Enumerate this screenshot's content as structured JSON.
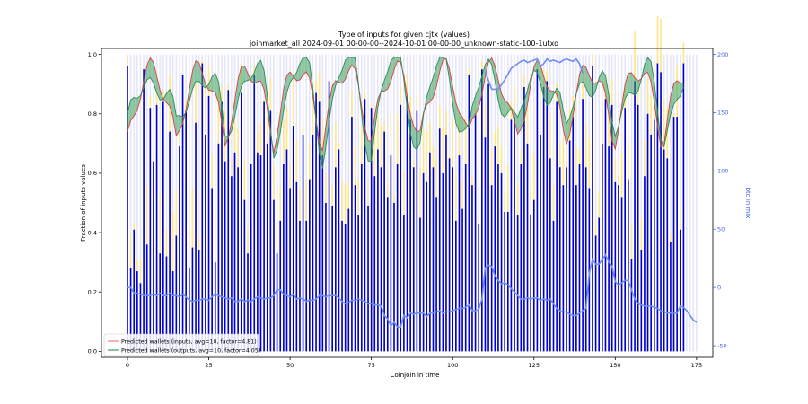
{
  "chart_data": {
    "type": "bar",
    "title": "Type of inputs for given cjtx (values)",
    "subtitle": "joinmarket_all 2024-09-01 00-00-00--2024-10-01 00-00-00_unknown-static-100-1utxo",
    "xlabel": "Coinjoin in time",
    "ylabel": "Fraction of inputs values",
    "y2label": "btc in mix",
    "xlim": [
      -8,
      180
    ],
    "ylim": [
      -0.02,
      1.02
    ],
    "y2lim": [
      -60,
      205
    ],
    "xticks": [
      "0",
      "25",
      "50",
      "75",
      "100",
      "125",
      "150",
      "175"
    ],
    "yticks": [
      "0.0",
      "0.2",
      "0.4",
      "0.6",
      "0.8",
      "1.0"
    ],
    "y2ticks": [
      "-50",
      "0",
      "50",
      "100",
      "150",
      "200"
    ],
    "grid": false,
    "legend_position": "bottom-left",
    "n_coinjoins": 176,
    "bar_fraction_blue": [
      0.96,
      0.28,
      0.41,
      0.27,
      0.23,
      0.95,
      0.36,
      0.82,
      0.64,
      0.83,
      0.33,
      0.84,
      0.32,
      0.74,
      0.27,
      0.39,
      0.69,
      0.93,
      0.81,
      0.28,
      0.35,
      0.77,
      0.34,
      0.97,
      0.73,
      0.86,
      0.55,
      0.3,
      0.7,
      0.84,
      0.64,
      0.88,
      0.59,
      0.67,
      0.62,
      0.87,
      0.51,
      0.33,
      0.63,
      0.93,
      0.67,
      0.66,
      0.84,
      0.7,
      0.81,
      0.51,
      0.33,
      0.44,
      0.63,
      0.68,
      0.55,
      0.76,
      0.57,
      0.44,
      0.73,
      0.44,
      0.58,
      0.73,
      0.87,
      0.84,
      0.66,
      0.5,
      0.91,
      0.49,
      0.62,
      0.68,
      0.44,
      0.43,
      0.48,
      0.79,
      0.56,
      0.46,
      0.63,
      0.85,
      0.49,
      0.82,
      0.59,
      0.68,
      0.62,
      0.74,
      0.52,
      0.66,
      0.5,
      0.63,
      0.83,
      0.46,
      0.86,
      0.78,
      0.62,
      0.81,
      0.45,
      0.6,
      0.57,
      0.67,
      0.62,
      0.52,
      0.75,
      0.6,
      0.73,
      0.65,
      0.62,
      0.44,
      0.66,
      0.48,
      0.63,
      0.93,
      0.56,
      0.8,
      0.43,
      0.95,
      0.72,
      0.9,
      0.56,
      0.69,
      0.63,
      0.6,
      0.47,
      0.47,
      0.78,
      0.79,
      0.46,
      0.63,
      0.89,
      0.7,
      0.46,
      0.51,
      0.95,
      0.73,
      0.89,
      0.91,
      0.65,
      0.44,
      0.84,
      0.62,
      0.56,
      0.62,
      0.71,
      0.79,
      0.56,
      0.63,
      0.85,
      0.62,
      0.55,
      0.96,
      0.39,
      0.45,
      0.7,
      0.85,
      0.69,
      0.83,
      0.57,
      0.56,
      0.52,
      0.82,
      0.58,
      0.31,
      0.91,
      0.83,
      0.34,
      0.59,
      0.8,
      0.73,
      0.78,
      0.97,
      0.94,
      0.68,
      0.65,
      0.37,
      0.79,
      0.79,
      0.41,
      0.97
    ],
    "bar_fraction_yellow": [
      0.03,
      0.12,
      0.02,
      0.04,
      0.08,
      0.0,
      0.2,
      0.04,
      0.01,
      0.04,
      0.2,
      0.04,
      0.09,
      0.19,
      0.2,
      0.16,
      0.05,
      0.0,
      0.03,
      0.14,
      0.2,
      0.14,
      0.05,
      0.01,
      0.17,
      0.1,
      0.12,
      0.18,
      0.17,
      0.05,
      0.17,
      0.02,
      0.05,
      0.11,
      0.13,
      0.1,
      0.14,
      0.09,
      0.0,
      0.03,
      0.07,
      0.11,
      0.01,
      0.12,
      0.11,
      0.12,
      0.11,
      0.11,
      0.15,
      0.14,
      0.08,
      0.15,
      0.14,
      0.11,
      0.03,
      0.14,
      0.12,
      0.15,
      0.04,
      0.1,
      0.13,
      0.1,
      0.0,
      0.07,
      0.15,
      0.02,
      0.14,
      0.13,
      0.09,
      0.09,
      0.13,
      0.12,
      0.13,
      0.02,
      0.09,
      0.01,
      0.16,
      0.12,
      0.14,
      0.03,
      0.05,
      0.14,
      0.03,
      0.17,
      0.06,
      0.15,
      0.07,
      0.08,
      0.03,
      0.06,
      0.17,
      0.15,
      0.17,
      0.1,
      0.07,
      0.13,
      0.08,
      0.15,
      0.08,
      0.01,
      0.16,
      0.16,
      0.14,
      0.09,
      0.15,
      0.02,
      0.03,
      0.02,
      0.01,
      0.03,
      0.11,
      0.02,
      0.12,
      0.05,
      0.13,
      0.09,
      0.07,
      0.16,
      0.06,
      0.1,
      0.11,
      0.05,
      0.04,
      0.12,
      0.11,
      0.16,
      0.01,
      0.17,
      0.06,
      0.03,
      0.15,
      0.12,
      0.06,
      0.08,
      0.16,
      0.05,
      0.11,
      0.07,
      0.13,
      0.05,
      0.05,
      0.15,
      0.17,
      0.04,
      0.05,
      0.09,
      0.14,
      0.06,
      0.11,
      0.09,
      0.08,
      0.03,
      0.15,
      0.06,
      0.12,
      0.12,
      0.17,
      0.07,
      0.11,
      0.12,
      0.12,
      0.13,
      0.07,
      0.16,
      0.18,
      0.17,
      0.17,
      0.03,
      0.01,
      0.17,
      0.08,
      0.07,
      0.02,
      0.0
    ],
    "btc_in_mix_top": [
      null,
      null,
      null,
      null,
      null,
      null,
      null,
      null,
      null,
      null,
      null,
      null,
      null,
      null,
      null,
      null,
      null,
      null,
      null,
      null,
      null,
      null,
      null,
      null,
      null,
      null,
      null,
      null,
      null,
      null,
      null,
      null,
      null,
      null,
      null,
      null,
      null,
      null,
      null,
      null,
      null,
      null,
      null,
      null,
      null,
      null,
      null,
      null,
      null,
      null,
      null,
      null,
      null,
      null,
      null,
      null,
      null,
      null,
      null,
      null,
      null,
      null,
      null,
      null,
      null,
      null,
      null,
      null,
      null,
      null,
      null,
      null,
      null,
      null,
      null,
      null,
      null,
      null,
      null,
      null,
      null,
      null,
      null,
      null,
      null,
      null,
      null,
      null,
      null,
      null,
      null,
      null,
      null,
      null,
      null,
      null,
      null,
      null,
      null,
      null,
      null,
      null,
      null,
      null,
      null,
      null,
      null,
      null,
      null,
      null,
      null,
      null,
      null,
      null,
      null,
      null,
      null,
      null,
      null,
      null,
      null,
      null,
      null,
      null,
      null,
      null,
      null,
      null,
      null,
      null,
      null,
      null,
      null,
      null,
      null,
      null,
      null,
      null,
      null,
      null,
      null,
      null,
      null,
      null,
      null,
      null,
      null,
      null,
      null,
      null,
      null,
      null,
      null,
      null,
      null,
      null,
      null,
      null,
      null,
      null,
      null,
      null,
      null,
      null,
      null,
      null,
      null,
      null,
      null,
      null,
      null,
      null,
      null,
      null,
      null,
      null
    ],
    "btc_in_mix_top_x": [
      110,
      112,
      114,
      116,
      118,
      120,
      121,
      122,
      123,
      124,
      125,
      126,
      127,
      128,
      129,
      130,
      131,
      132,
      133,
      134,
      135,
      136,
      137,
      138,
      139,
      140
    ],
    "btc_in_mix_top_y": [
      185,
      170,
      170,
      178,
      188,
      192,
      194,
      195,
      193,
      194,
      195,
      196,
      190,
      192,
      196,
      194,
      195,
      194,
      193,
      195,
      196,
      195,
      194,
      196,
      192,
      184
    ],
    "btc_in_mix_bottom_x": [
      0,
      1,
      2,
      3,
      4,
      5,
      6,
      7,
      8,
      9,
      10,
      11,
      12,
      13,
      14,
      15,
      16,
      17,
      18,
      19,
      20,
      21,
      22,
      23,
      24,
      25,
      26,
      27,
      28,
      29,
      30,
      31,
      32,
      33,
      34,
      35,
      36,
      37,
      38,
      39,
      40,
      41,
      42,
      43,
      44,
      45,
      46,
      47,
      48,
      49,
      50,
      51,
      52,
      53,
      54,
      55,
      56,
      57,
      58,
      59,
      60,
      61,
      62,
      63,
      64,
      65,
      66,
      67,
      68,
      69,
      70,
      71,
      72,
      73,
      74,
      75,
      76,
      77,
      78,
      79,
      80,
      81,
      82,
      83,
      84,
      85,
      86,
      87,
      88,
      89,
      90,
      91,
      92,
      93,
      94,
      95,
      96,
      97,
      98,
      99,
      100,
      101,
      102,
      103,
      104,
      105,
      106,
      107,
      108,
      109,
      110,
      111,
      112,
      113,
      114,
      115,
      116,
      117,
      118,
      119,
      120,
      121,
      122,
      123,
      124,
      125,
      126,
      127,
      128,
      129,
      130,
      131,
      132,
      133,
      134,
      135,
      136,
      137,
      138,
      139,
      140,
      141,
      142,
      143,
      144,
      145,
      146,
      147,
      148,
      149,
      150,
      151,
      152,
      153,
      154,
      155,
      156,
      157,
      158,
      159,
      160,
      161,
      162,
      163,
      164,
      165,
      166,
      167,
      168,
      169,
      170,
      171,
      172,
      173,
      174,
      175
    ],
    "btc_in_mix_bottom_y": [
      0,
      0,
      -5,
      -5,
      -6,
      -7,
      -7,
      -7,
      -6,
      -7,
      -5,
      -7,
      -7,
      -5,
      -7,
      -7,
      -8,
      -6,
      -8,
      -11,
      -12,
      -11,
      -11,
      -10,
      -10,
      -11,
      -8,
      -6,
      -7,
      -8,
      -9,
      -10,
      -9,
      -12,
      -12,
      -10,
      -12,
      -11,
      -12,
      -10,
      -8,
      -9,
      -10,
      -9,
      -9,
      -7,
      -2,
      -2,
      -6,
      -7,
      -8,
      -6,
      -10,
      -9,
      -10,
      -12,
      -11,
      -11,
      -10,
      -7,
      -7,
      -8,
      -7,
      -7,
      -7,
      -9,
      -12,
      -14,
      -13,
      -11,
      -11,
      -10,
      -11,
      -12,
      -14,
      -14,
      -15,
      -15,
      -16,
      -24,
      -27,
      -33,
      -30,
      -34,
      -34,
      -24,
      -26,
      -22,
      -23,
      -22,
      -22,
      -22,
      -25,
      -22,
      -22,
      -21,
      -20,
      -22,
      -21,
      -21,
      -20,
      -19,
      -18,
      -18,
      -17,
      -15,
      -20,
      -20,
      -19,
      -10,
      17,
      19,
      18,
      10,
      6,
      3,
      4,
      2,
      -1,
      -4,
      -7,
      -10,
      -10,
      -9,
      -10,
      -9,
      -9,
      -11,
      -10,
      -11,
      -10,
      -14,
      -18,
      -20,
      -21,
      -21,
      -23,
      -24,
      -24,
      -22,
      -20,
      -18,
      12,
      24,
      20,
      20,
      24,
      28,
      22,
      18,
      5,
      2,
      4,
      6,
      6,
      -2,
      -10,
      -14,
      -15,
      -16,
      -16,
      -16,
      -17,
      -18,
      -20,
      -21,
      -22,
      -22,
      -22,
      -22,
      -16,
      -17,
      -20,
      -24,
      -28,
      -30,
      -28,
      -28,
      -26,
      -27,
      -26,
      -34
    ]
  },
  "legend": {
    "entries": [
      {
        "label": "Predicted wallets (inputs, avg=10, factor=4.81)",
        "color": "#f08080"
      },
      {
        "label": "Predicted wallets (outputs, avg=10, factor=4.05)",
        "color": "#3d9e5a"
      }
    ]
  },
  "colors": {
    "bar_blue": "#0000cd",
    "bar_yellow": "#ffe68c",
    "bar_lavender": "#e6e6fa",
    "line_btc": "#6f8cf0",
    "inputs_line": "#d94040",
    "inputs_fill": "#f08080",
    "outputs_line": "#2e8b57",
    "outputs_fill": "#3d9e5a",
    "y2_axis": "#4169e1"
  }
}
